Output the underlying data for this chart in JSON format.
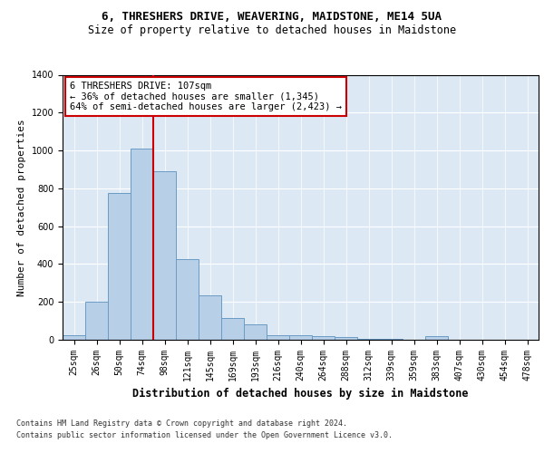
{
  "title": "6, THRESHERS DRIVE, WEAVERING, MAIDSTONE, ME14 5UA",
  "subtitle": "Size of property relative to detached houses in Maidstone",
  "xlabel": "Distribution of detached houses by size in Maidstone",
  "ylabel": "Number of detached properties",
  "categories": [
    "25sqm",
    "26sqm",
    "50sqm",
    "74sqm",
    "98sqm",
    "121sqm",
    "145sqm",
    "169sqm",
    "193sqm",
    "216sqm",
    "240sqm",
    "264sqm",
    "288sqm",
    "312sqm",
    "339sqm",
    "359sqm",
    "383sqm",
    "407sqm",
    "430sqm",
    "454sqm",
    "478sqm"
  ],
  "values": [
    25,
    200,
    775,
    1010,
    890,
    425,
    235,
    115,
    80,
    25,
    25,
    18,
    15,
    5,
    3,
    2,
    18,
    2,
    1,
    1,
    1
  ],
  "bar_color": "#b8cfe8",
  "bar_edge_color": "#6b9cc4",
  "vline_color": "#cc0000",
  "annotation_text": "6 THRESHERS DRIVE: 107sqm\n← 36% of detached houses are smaller (1,345)\n64% of semi-detached houses are larger (2,423) →",
  "annotation_box_facecolor": "#ffffff",
  "annotation_box_edgecolor": "#cc0000",
  "ylim": [
    0,
    1400
  ],
  "yticks": [
    0,
    200,
    400,
    600,
    800,
    1000,
    1200,
    1400
  ],
  "background_color": "#dce9f5",
  "grid_color": "#ffffff",
  "footer_line1": "Contains HM Land Registry data © Crown copyright and database right 2024.",
  "footer_line2": "Contains public sector information licensed under the Open Government Licence v3.0.",
  "title_fontsize": 9,
  "subtitle_fontsize": 8.5,
  "ylabel_fontsize": 8,
  "xlabel_fontsize": 8.5,
  "tick_fontsize": 7,
  "annot_fontsize": 7.5,
  "footer_fontsize": 6
}
